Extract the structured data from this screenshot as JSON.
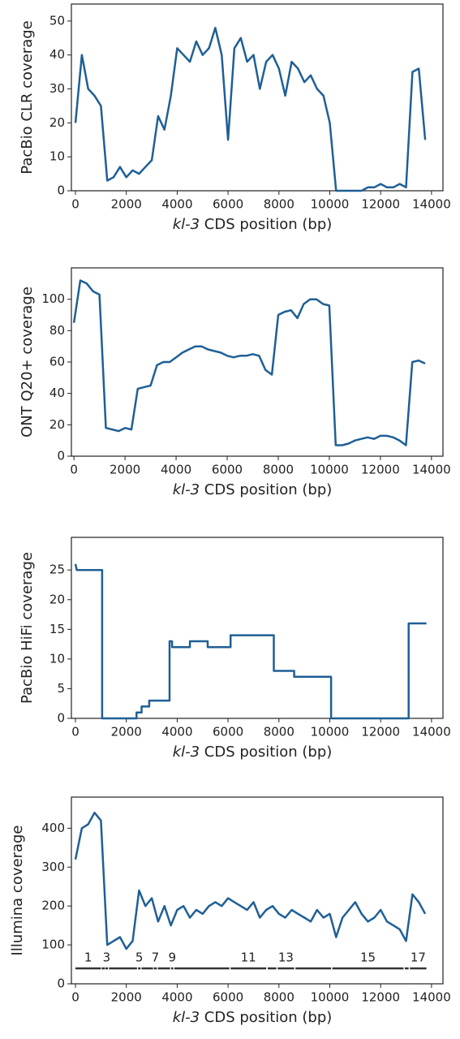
{
  "chart_data": [
    {
      "type": "line",
      "ylabel": "PacBio CLR coverage",
      "xlabel": [
        "kl-3",
        " CDS position (bp)"
      ],
      "xlim": [
        -160,
        14450
      ],
      "ylim": [
        0,
        55
      ],
      "xticks": [
        0,
        2000,
        4000,
        6000,
        8000,
        10000,
        12000,
        14000
      ],
      "yticks": [
        0,
        10,
        20,
        30,
        40,
        50
      ],
      "series": [
        {
          "color": "#1f5f96",
          "x": [
            0,
            250,
            500,
            750,
            1000,
            1250,
            1500,
            1750,
            2000,
            2250,
            2500,
            2750,
            3000,
            3250,
            3500,
            3750,
            4000,
            4250,
            4500,
            4750,
            5000,
            5250,
            5500,
            5750,
            6000,
            6250,
            6500,
            6750,
            7000,
            7250,
            7500,
            7750,
            8000,
            8250,
            8500,
            8750,
            9000,
            9250,
            9500,
            9750,
            10000,
            10250,
            10500,
            10750,
            11000,
            11250,
            11500,
            11750,
            12000,
            12250,
            12500,
            12750,
            13000,
            13250,
            13500,
            13750
          ],
          "values": [
            20,
            40,
            30,
            28,
            25,
            3,
            4,
            7,
            4,
            6,
            5,
            7,
            9,
            22,
            18,
            28,
            42,
            40,
            38,
            44,
            40,
            42,
            48,
            40,
            15,
            42,
            45,
            38,
            40,
            30,
            38,
            40,
            36,
            28,
            38,
            36,
            32,
            34,
            30,
            28,
            20,
            0,
            0,
            0,
            0,
            0,
            1,
            1,
            2,
            1,
            1,
            2,
            1,
            35,
            36,
            15
          ]
        }
      ]
    },
    {
      "type": "line",
      "ylabel": "ONT Q20+ coverage",
      "xlabel": [
        "kl-3",
        " CDS position (bp)"
      ],
      "xlim": [
        -100,
        14450
      ],
      "ylim": [
        0,
        120
      ],
      "xticks": [
        0,
        2000,
        4000,
        6000,
        8000,
        10000,
        12000,
        14000
      ],
      "yticks": [
        0,
        20,
        40,
        60,
        80,
        100
      ],
      "series": [
        {
          "color": "#1f5f96",
          "x": [
            0,
            250,
            500,
            750,
            1000,
            1250,
            1500,
            1750,
            2000,
            2250,
            2500,
            2750,
            3000,
            3250,
            3500,
            3750,
            4000,
            4250,
            4500,
            4750,
            5000,
            5250,
            5500,
            5750,
            6000,
            6250,
            6500,
            6750,
            7000,
            7250,
            7500,
            7750,
            8000,
            8250,
            8500,
            8750,
            9000,
            9250,
            9500,
            9750,
            10000,
            10250,
            10500,
            10750,
            11000,
            11250,
            11500,
            11750,
            12000,
            12250,
            12500,
            12750,
            13000,
            13250,
            13500,
            13750
          ],
          "values": [
            85,
            112,
            110,
            105,
            103,
            18,
            17,
            16,
            18,
            17,
            43,
            44,
            45,
            58,
            60,
            60,
            63,
            66,
            68,
            70,
            70,
            68,
            67,
            66,
            64,
            63,
            64,
            64,
            65,
            64,
            55,
            52,
            90,
            92,
            93,
            88,
            97,
            100,
            100,
            97,
            96,
            7,
            7,
            8,
            10,
            11,
            12,
            11,
            13,
            13,
            12,
            10,
            7,
            60,
            61,
            59
          ]
        }
      ]
    },
    {
      "type": "line",
      "ylabel": "PacBio HiFi coverage",
      "xlabel": [
        "kl-3",
        " CDS position (bp)"
      ],
      "xlim": [
        -160,
        14450
      ],
      "ylim": [
        0,
        30.5
      ],
      "xticks": [
        0,
        2000,
        4000,
        6000,
        8000,
        10000,
        12000,
        14000
      ],
      "yticks": [
        0,
        5,
        10,
        15,
        20,
        25
      ],
      "series": [
        {
          "color": "#1f5f96",
          "x": [
            0,
            50,
            1050,
            1050,
            2400,
            2400,
            2600,
            2600,
            2900,
            2900,
            3700,
            3700,
            3800,
            3800,
            4500,
            4500,
            5200,
            5200,
            6100,
            6100,
            7800,
            7800,
            8600,
            8600,
            10050,
            10050,
            13100,
            13100,
            13800
          ],
          "values": [
            26,
            25,
            25,
            0,
            0,
            1,
            1,
            2,
            2,
            3,
            3,
            13,
            13,
            12,
            12,
            13,
            13,
            12,
            12,
            14,
            14,
            8,
            8,
            7,
            7,
            0,
            0,
            16,
            16
          ]
        }
      ]
    },
    {
      "type": "line",
      "ylabel": "Illumina coverage",
      "xlabel": [
        "kl-3",
        " CDS position (bp)"
      ],
      "xlim": [
        -160,
        14450
      ],
      "ylim": [
        0,
        480
      ],
      "xticks": [
        0,
        2000,
        4000,
        6000,
        8000,
        10000,
        12000,
        14000
      ],
      "yticks": [
        0,
        100,
        200,
        300,
        400
      ],
      "series": [
        {
          "color": "#1f5f96",
          "x": [
            0,
            250,
            500,
            750,
            1000,
            1250,
            1500,
            1750,
            2000,
            2250,
            2500,
            2750,
            3000,
            3250,
            3500,
            3750,
            4000,
            4250,
            4500,
            4750,
            5000,
            5250,
            5500,
            5750,
            6000,
            6250,
            6500,
            6750,
            7000,
            7250,
            7500,
            7750,
            8000,
            8250,
            8500,
            8750,
            9000,
            9250,
            9500,
            9750,
            10000,
            10250,
            10500,
            10750,
            11000,
            11250,
            11500,
            11750,
            12000,
            12250,
            12500,
            12750,
            13000,
            13250,
            13500,
            13750
          ],
          "values": [
            320,
            400,
            410,
            440,
            420,
            100,
            110,
            120,
            90,
            110,
            240,
            200,
            220,
            160,
            200,
            150,
            190,
            200,
            170,
            190,
            180,
            200,
            210,
            200,
            220,
            210,
            200,
            190,
            210,
            170,
            190,
            200,
            180,
            170,
            190,
            180,
            170,
            160,
            190,
            170,
            180,
            120,
            170,
            190,
            210,
            180,
            160,
            170,
            190,
            160,
            150,
            140,
            110,
            230,
            210,
            180
          ]
        }
      ],
      "exons": [
        {
          "start": 0,
          "end": 1000,
          "label": "1"
        },
        {
          "start": 1030,
          "end": 1150
        },
        {
          "start": 1170,
          "end": 1280,
          "label": "3"
        },
        {
          "start": 1320,
          "end": 2420
        },
        {
          "start": 2460,
          "end": 2560,
          "label": "5"
        },
        {
          "start": 2600,
          "end": 3050
        },
        {
          "start": 3080,
          "end": 3200,
          "label": "7"
        },
        {
          "start": 3240,
          "end": 3720
        },
        {
          "start": 3760,
          "end": 3850,
          "label": "9"
        },
        {
          "start": 3890,
          "end": 6050
        },
        {
          "start": 6100,
          "end": 7500,
          "label": "11"
        },
        {
          "start": 7560,
          "end": 7900
        },
        {
          "start": 7950,
          "end": 8600,
          "label": "13"
        },
        {
          "start": 8650,
          "end": 10050
        },
        {
          "start": 10100,
          "end": 12900,
          "label": "15"
        },
        {
          "start": 12950,
          "end": 13100
        },
        {
          "start": 13150,
          "end": 13800,
          "label": "17"
        }
      ]
    }
  ]
}
